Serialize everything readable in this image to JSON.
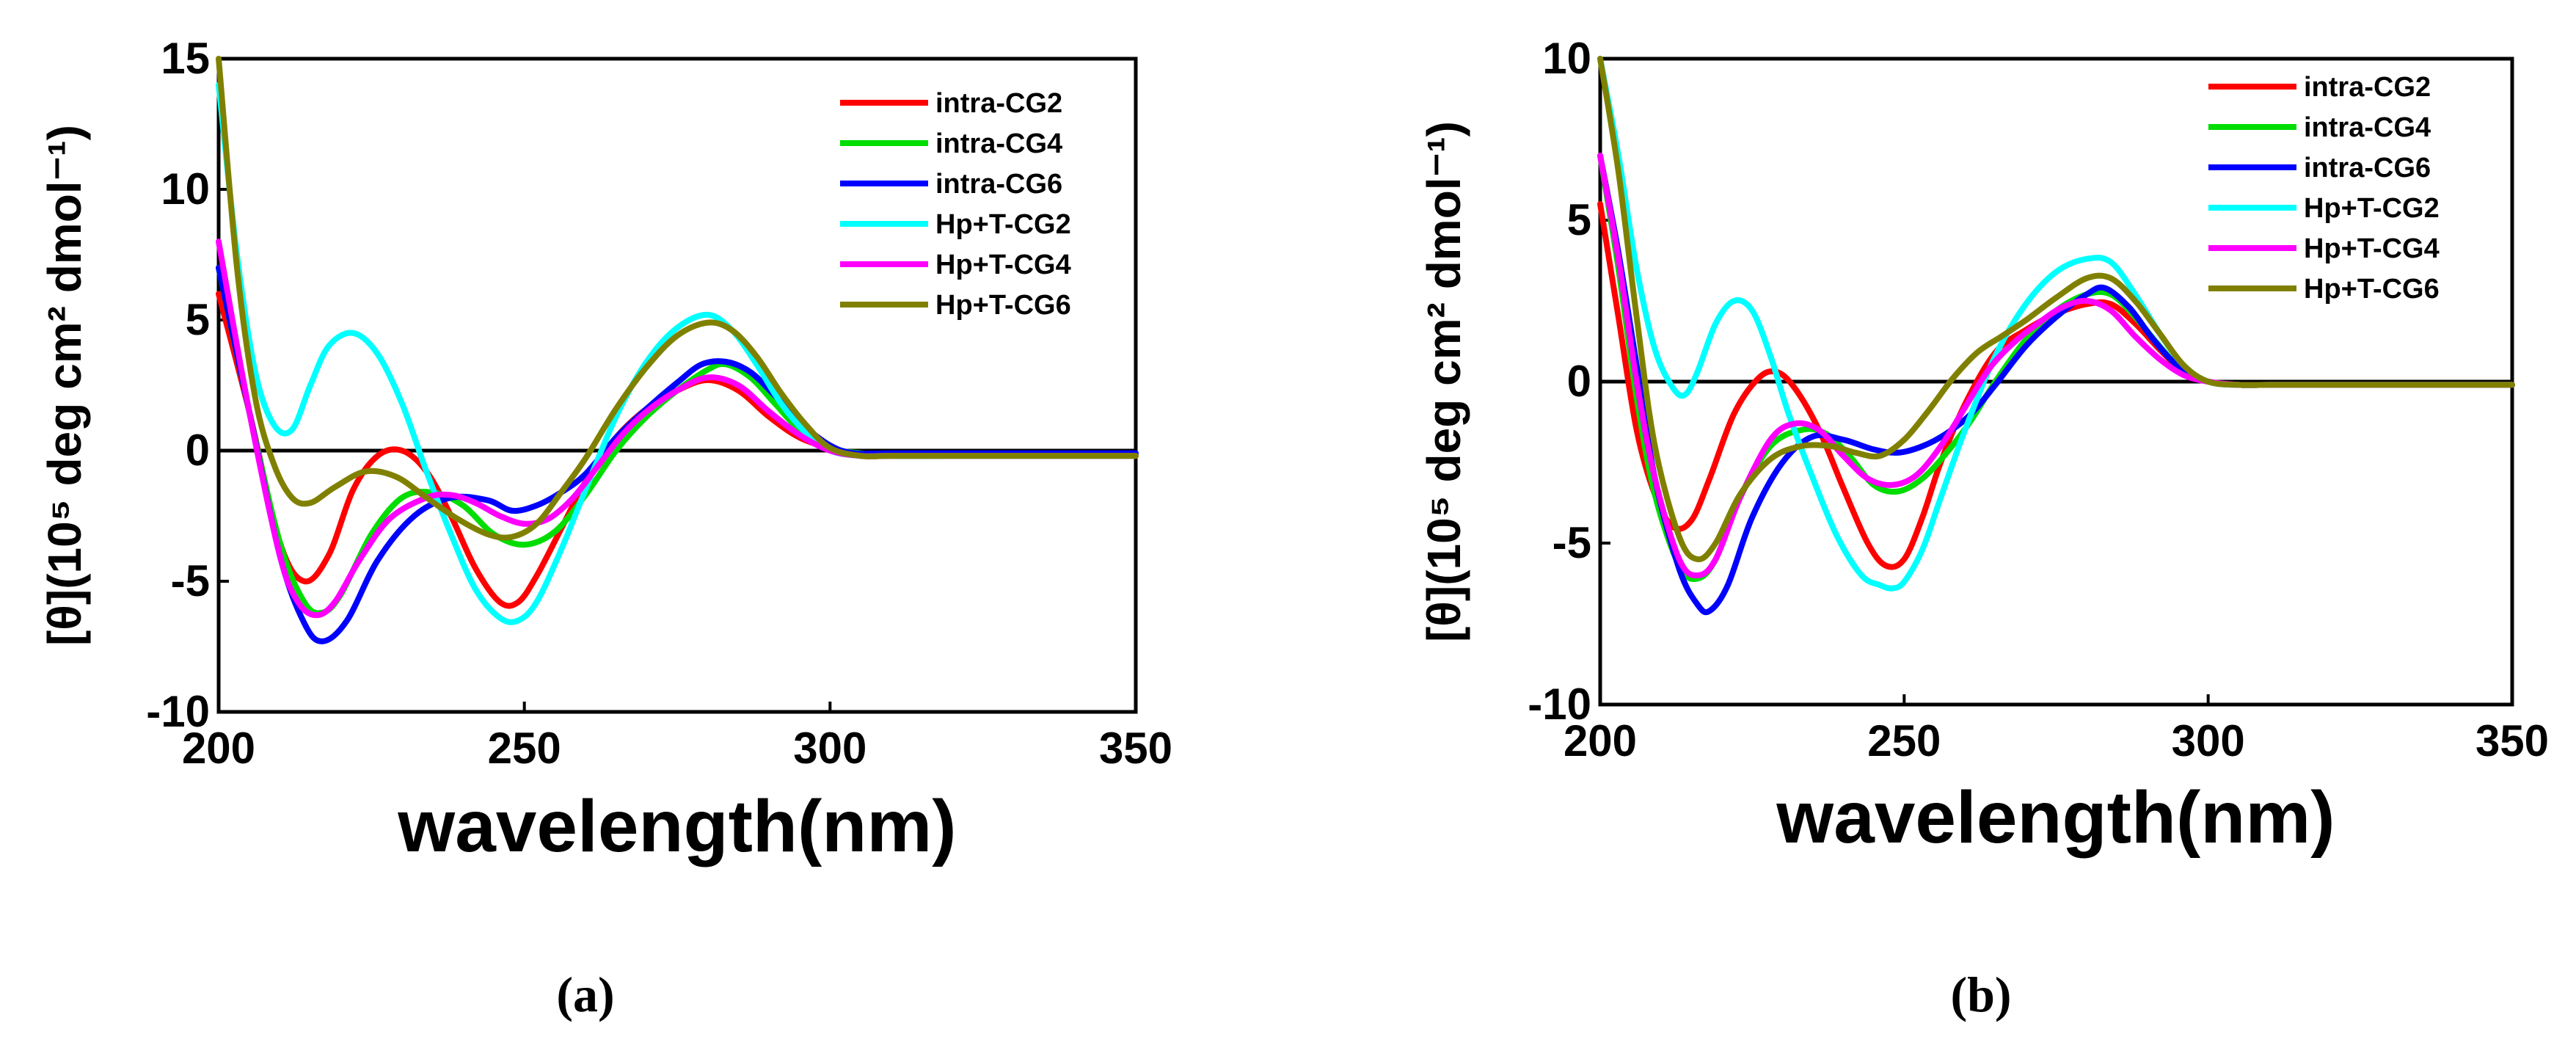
{
  "chart_data": [
    {
      "type": "line",
      "panel_label": "(a)",
      "xlabel": "wavelength(nm)",
      "ylabel": "[θ](10⁵ deg cm² dmol⁻¹)",
      "xlim": [
        200,
        350
      ],
      "ylim": [
        -10,
        15
      ],
      "xticks": [
        200,
        250,
        300,
        350
      ],
      "yticks": [
        -10,
        -5,
        0,
        5,
        10,
        15
      ],
      "legend": "top-right",
      "series": [
        {
          "name": "intra-CG2",
          "color": "#ff0000",
          "x": [
            200,
            205,
            210,
            214,
            218,
            222,
            226,
            230,
            234,
            238,
            242,
            246,
            249,
            252,
            256,
            260,
            265,
            270,
            275,
            280,
            285,
            290,
            295,
            300,
            305,
            310,
            320,
            330,
            340,
            350
          ],
          "y": [
            6,
            1.5,
            -3.5,
            -5,
            -4,
            -1.5,
            -0.2,
            0,
            -0.8,
            -2.5,
            -4.5,
            -5.8,
            -5.8,
            -4.8,
            -3,
            -1.2,
            0.5,
            1.6,
            2.3,
            2.7,
            2.3,
            1.3,
            0.5,
            0.1,
            -0.2,
            -0.2,
            -0.2,
            -0.2,
            -0.2,
            -0.2
          ]
        },
        {
          "name": "intra-CG4",
          "color": "#00dd00",
          "x": [
            200,
            205,
            210,
            214,
            217,
            220,
            225,
            230,
            235,
            240,
            245,
            250,
            255,
            260,
            265,
            270,
            275,
            280,
            283,
            287,
            291,
            295,
            300,
            305,
            310,
            320,
            330,
            340,
            350
          ],
          "y": [
            7,
            1.5,
            -3.5,
            -5.8,
            -6.2,
            -5.5,
            -3.2,
            -1.8,
            -1.6,
            -2.1,
            -3.2,
            -3.6,
            -3.1,
            -1.7,
            0,
            1.3,
            2.3,
            3.1,
            3.3,
            2.8,
            1.8,
            0.8,
            0.1,
            -0.1,
            -0.2,
            -0.2,
            -0.2,
            -0.2,
            -0.2
          ]
        },
        {
          "name": "intra-CG6",
          "color": "#0000ff",
          "x": [
            200,
            205,
            210,
            214,
            217,
            221,
            226,
            232,
            238,
            244,
            248,
            252,
            256,
            260,
            265,
            270,
            275,
            279,
            283,
            287,
            291,
            295,
            300,
            304,
            310,
            320,
            330,
            340,
            350
          ],
          "y": [
            7,
            1.5,
            -4,
            -6.6,
            -7.3,
            -6.5,
            -4.2,
            -2.5,
            -1.8,
            -1.9,
            -2.3,
            -2.1,
            -1.6,
            -0.9,
            0.5,
            1.6,
            2.6,
            3.3,
            3.4,
            3.0,
            2.1,
            1.1,
            0.2,
            -0.1,
            -0.1,
            -0.1,
            -0.1,
            -0.1,
            -0.1
          ]
        },
        {
          "name": "Hp+T-CG2",
          "color": "#00ffff",
          "x": [
            200,
            203,
            206,
            209,
            212,
            215,
            218,
            222,
            226,
            230,
            234,
            238,
            242,
            246,
            249,
            252,
            256,
            260,
            265,
            270,
            275,
            280,
            284,
            288,
            292,
            296,
            300,
            305,
            310,
            320,
            330,
            340,
            350
          ],
          "y": [
            14,
            7.5,
            3,
            1,
            0.8,
            2.5,
            4,
            4.5,
            3.7,
            1.8,
            -0.8,
            -3.2,
            -5.3,
            -6.4,
            -6.5,
            -5.8,
            -3.8,
            -1.5,
            1.3,
            3.4,
            4.7,
            5.2,
            4.6,
            3.3,
            1.8,
            0.7,
            0,
            -0.2,
            -0.2,
            -0.2,
            -0.2,
            -0.2,
            -0.2
          ]
        },
        {
          "name": "Hp+T-CG4",
          "color": "#ff00ff",
          "x": [
            200,
            205,
            210,
            213,
            216,
            219,
            223,
            228,
            234,
            238,
            242,
            246,
            250,
            254,
            258,
            262,
            266,
            270,
            275,
            280,
            285,
            290,
            295,
            300,
            305,
            310,
            320,
            330,
            340,
            350
          ],
          "y": [
            8,
            1.5,
            -4,
            -5.8,
            -6.3,
            -5.8,
            -4.2,
            -2.6,
            -1.8,
            -1.7,
            -2.0,
            -2.5,
            -2.8,
            -2.6,
            -1.8,
            -0.6,
            0.6,
            1.5,
            2.3,
            2.8,
            2.5,
            1.5,
            0.6,
            0,
            -0.2,
            -0.2,
            -0.2,
            -0.2,
            -0.2,
            -0.2
          ]
        },
        {
          "name": "Hp+T-CG6",
          "color": "#808000",
          "x": [
            200,
            203,
            206,
            209,
            212,
            215,
            219,
            224,
            229,
            234,
            239,
            244,
            248,
            252,
            256,
            260,
            265,
            270,
            275,
            280,
            284,
            288,
            292,
            296,
            300,
            305,
            310,
            320,
            330,
            340,
            350
          ],
          "y": [
            15,
            7,
            2,
            -0.5,
            -1.8,
            -2,
            -1.4,
            -0.8,
            -1.0,
            -1.8,
            -2.6,
            -3.2,
            -3.3,
            -2.8,
            -1.6,
            -0.3,
            1.6,
            3.2,
            4.4,
            4.9,
            4.6,
            3.6,
            2.2,
            1.0,
            0.1,
            -0.2,
            -0.2,
            -0.2,
            -0.2,
            -0.2,
            -0.2
          ]
        }
      ]
    },
    {
      "type": "line",
      "panel_label": "(b)",
      "xlabel": "wavelength(nm)",
      "ylabel": "[θ](10⁵ deg cm² dmol⁻¹)",
      "xlim": [
        200,
        350
      ],
      "ylim": [
        -10,
        10
      ],
      "xticks": [
        200,
        250,
        300,
        350
      ],
      "yticks": [
        -10,
        -5,
        0,
        5,
        10
      ],
      "legend": "top-right",
      "series": [
        {
          "name": "intra-CG2",
          "color": "#ff0000",
          "x": [
            200,
            203,
            206,
            209,
            212,
            215,
            218,
            222,
            226,
            229,
            232,
            236,
            240,
            244,
            247,
            250,
            253,
            256,
            260,
            265,
            270,
            275,
            280,
            284,
            288,
            292,
            296,
            300,
            305,
            310,
            320,
            330,
            340,
            350
          ],
          "y": [
            5.5,
            2,
            -1.5,
            -3.5,
            -4.5,
            -4.3,
            -3,
            -1,
            0.1,
            0.3,
            -0.2,
            -1.5,
            -3.3,
            -5,
            -5.7,
            -5.5,
            -4.2,
            -2.5,
            -0.7,
            0.9,
            1.6,
            2.1,
            2.4,
            2.4,
            1.8,
            1.0,
            0.3,
            0,
            -0.1,
            -0.1,
            -0.1,
            -0.1,
            -0.1,
            -0.1
          ]
        },
        {
          "name": "intra-CG4",
          "color": "#00dd00",
          "x": [
            200,
            203,
            206,
            209,
            213,
            216,
            219,
            223,
            228,
            233,
            237,
            241,
            245,
            249,
            253,
            257,
            261,
            265,
            270,
            275,
            280,
            284,
            288,
            292,
            296,
            300,
            305,
            310,
            320,
            330,
            340,
            350
          ],
          "y": [
            7,
            3.5,
            -0.5,
            -3.5,
            -5.7,
            -6.1,
            -5.5,
            -3.6,
            -2.0,
            -1.5,
            -1.6,
            -2.3,
            -3.2,
            -3.4,
            -3.0,
            -2.2,
            -1.2,
            0,
            1.3,
            2.2,
            2.7,
            2.7,
            2.0,
            1.1,
            0.3,
            0,
            -0.1,
            -0.1,
            -0.1,
            -0.1,
            -0.1,
            -0.1
          ]
        },
        {
          "name": "intra-CG6",
          "color": "#0000ff",
          "x": [
            200,
            203,
            206,
            209,
            213,
            216,
            218,
            221,
            225,
            230,
            235,
            240,
            245,
            249,
            253,
            257,
            261,
            265,
            270,
            275,
            280,
            283,
            287,
            291,
            295,
            300,
            305,
            310,
            320,
            330,
            340,
            350
          ],
          "y": [
            7,
            4,
            0.5,
            -3,
            -5.8,
            -6.9,
            -7.1,
            -6.3,
            -4.2,
            -2.5,
            -1.7,
            -1.8,
            -2.1,
            -2.2,
            -2.0,
            -1.6,
            -1.0,
            -0.1,
            1.1,
            2.0,
            2.7,
            2.9,
            2.3,
            1.3,
            0.5,
            0,
            -0.1,
            -0.1,
            -0.1,
            -0.1,
            -0.1,
            -0.1
          ]
        },
        {
          "name": "Hp+T-CG2",
          "color": "#00ffff",
          "x": [
            200,
            203,
            206,
            209,
            212,
            214,
            216,
            219,
            222,
            225,
            228,
            231,
            235,
            239,
            243,
            246,
            248,
            250,
            253,
            256,
            260,
            265,
            270,
            275,
            280,
            284,
            288,
            292,
            296,
            300,
            305,
            310,
            320,
            330,
            340,
            350
          ],
          "y": [
            10,
            7,
            3.5,
            1,
            -0.2,
            -0.4,
            0.3,
            1.8,
            2.5,
            2.2,
            0.8,
            -1.0,
            -3.0,
            -4.8,
            -6.0,
            -6.3,
            -6.4,
            -6.2,
            -5.2,
            -3.6,
            -1.5,
            0.8,
            2.4,
            3.4,
            3.8,
            3.7,
            2.7,
            1.5,
            0.5,
            0,
            -0.1,
            -0.1,
            -0.1,
            -0.1,
            -0.1,
            -0.1
          ]
        },
        {
          "name": "Hp+T-CG4",
          "color": "#ff00ff",
          "x": [
            200,
            203,
            206,
            209,
            213,
            216,
            219,
            223,
            228,
            232,
            236,
            240,
            244,
            248,
            252,
            256,
            260,
            264,
            268,
            272,
            276,
            280,
            284,
            288,
            292,
            296,
            300,
            305,
            310,
            320,
            330,
            340,
            350
          ],
          "y": [
            7,
            3.8,
            0,
            -3,
            -5.5,
            -6.0,
            -5.5,
            -3.6,
            -1.8,
            -1.3,
            -1.5,
            -2.3,
            -3.0,
            -3.2,
            -2.9,
            -2.0,
            -0.8,
            0.4,
            1.2,
            1.8,
            2.3,
            2.5,
            2.2,
            1.4,
            0.7,
            0.2,
            0,
            -0.1,
            -0.1,
            -0.1,
            -0.1,
            -0.1,
            -0.1
          ]
        },
        {
          "name": "Hp+T-CG6",
          "color": "#808000",
          "x": [
            200,
            203,
            206,
            209,
            213,
            216,
            219,
            223,
            228,
            233,
            238,
            242,
            246,
            250,
            254,
            258,
            262,
            266,
            270,
            275,
            280,
            284,
            288,
            292,
            296,
            300,
            305,
            310,
            320,
            330,
            340,
            350
          ],
          "y": [
            10,
            6.5,
            2,
            -2,
            -4.8,
            -5.5,
            -5.0,
            -3.5,
            -2.4,
            -2.0,
            -2.0,
            -2.2,
            -2.3,
            -1.8,
            -0.9,
            0.1,
            0.9,
            1.4,
            1.9,
            2.6,
            3.2,
            3.2,
            2.5,
            1.5,
            0.5,
            0,
            -0.1,
            -0.1,
            -0.1,
            -0.1,
            -0.1,
            -0.1
          ]
        }
      ]
    }
  ]
}
